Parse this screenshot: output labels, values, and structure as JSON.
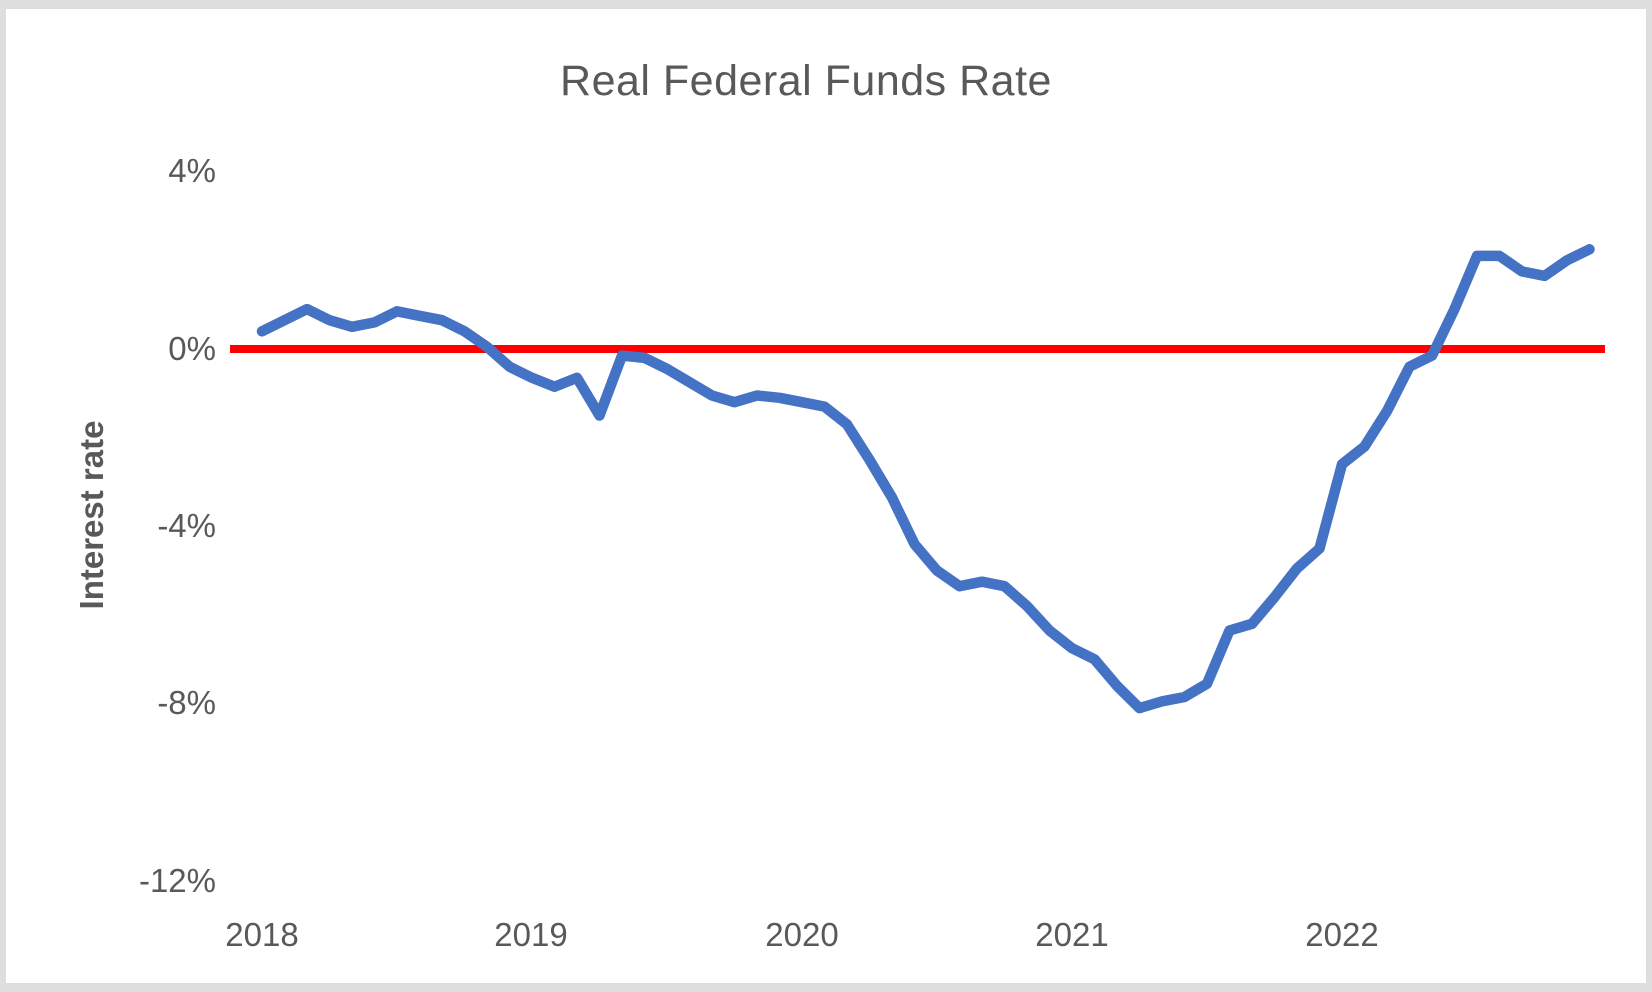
{
  "chart_data": {
    "type": "line",
    "title": "Real Federal Funds Rate",
    "xlabel": "",
    "ylabel": "Interest rate",
    "y_unit": "percent",
    "grid": false,
    "legend": "none",
    "y_ticks": [
      {
        "label": "4%",
        "value": 4
      },
      {
        "label": "0%",
        "value": 0
      },
      {
        "label": "-4%",
        "value": -4
      },
      {
        "label": "-8%",
        "value": -8
      },
      {
        "label": "-12%",
        "value": -12
      }
    ],
    "x_ticks": [
      "2018",
      "2019",
      "2020",
      "2021",
      "2022"
    ],
    "ylim": [
      -13,
      5
    ],
    "x": [
      "2018-01",
      "2018-02",
      "2018-03",
      "2018-04",
      "2018-05",
      "2018-06",
      "2018-07",
      "2018-08",
      "2018-09",
      "2018-10",
      "2018-11",
      "2018-12",
      "2019-01",
      "2019-02",
      "2019-03",
      "2019-04",
      "2019-05",
      "2019-06",
      "2019-07",
      "2019-08",
      "2019-09",
      "2019-10",
      "2019-11",
      "2019-12",
      "2020-01",
      "2020-02",
      "2020-03",
      "2020-04",
      "2020-05",
      "2020-06",
      "2020-07",
      "2020-08",
      "2020-09",
      "2020-10",
      "2020-11",
      "2020-12",
      "2021-01",
      "2021-02",
      "2021-03",
      "2021-04",
      "2021-05",
      "2021-06",
      "2021-07",
      "2021-08",
      "2021-09",
      "2021-10",
      "2021-11",
      "2021-12",
      "2022-01",
      "2022-02",
      "2022-03",
      "2022-04",
      "2022-05",
      "2022-06",
      "2022-07",
      "2022-08",
      "2022-09",
      "2022-10",
      "2022-11",
      "2022-12"
    ],
    "series": [
      {
        "name": "Real federal funds rate",
        "color": "#4472C4",
        "values": [
          0.4,
          0.65,
          0.9,
          0.65,
          0.5,
          0.6,
          0.85,
          0.75,
          0.65,
          0.4,
          0.05,
          -0.4,
          -0.65,
          -0.85,
          -0.65,
          -1.5,
          -0.15,
          -0.2,
          -0.45,
          -0.75,
          -1.05,
          -1.2,
          -1.05,
          -1.1,
          -1.2,
          -1.3,
          -1.7,
          -2.5,
          -3.35,
          -4.4,
          -5.0,
          -5.35,
          -5.25,
          -5.35,
          -5.8,
          -6.35,
          -6.75,
          -7.0,
          -7.6,
          -8.1,
          -7.95,
          -7.85,
          -7.55,
          -6.35,
          -6.2,
          -5.6,
          -4.95,
          -4.5,
          -2.6,
          -2.2,
          -1.4,
          -0.4,
          -0.15,
          0.9,
          2.1,
          2.1,
          1.75,
          1.65,
          2.0,
          2.25
        ]
      }
    ],
    "baseline": {
      "name": "Zero line",
      "color": "#FF0000",
      "value": 0
    }
  }
}
